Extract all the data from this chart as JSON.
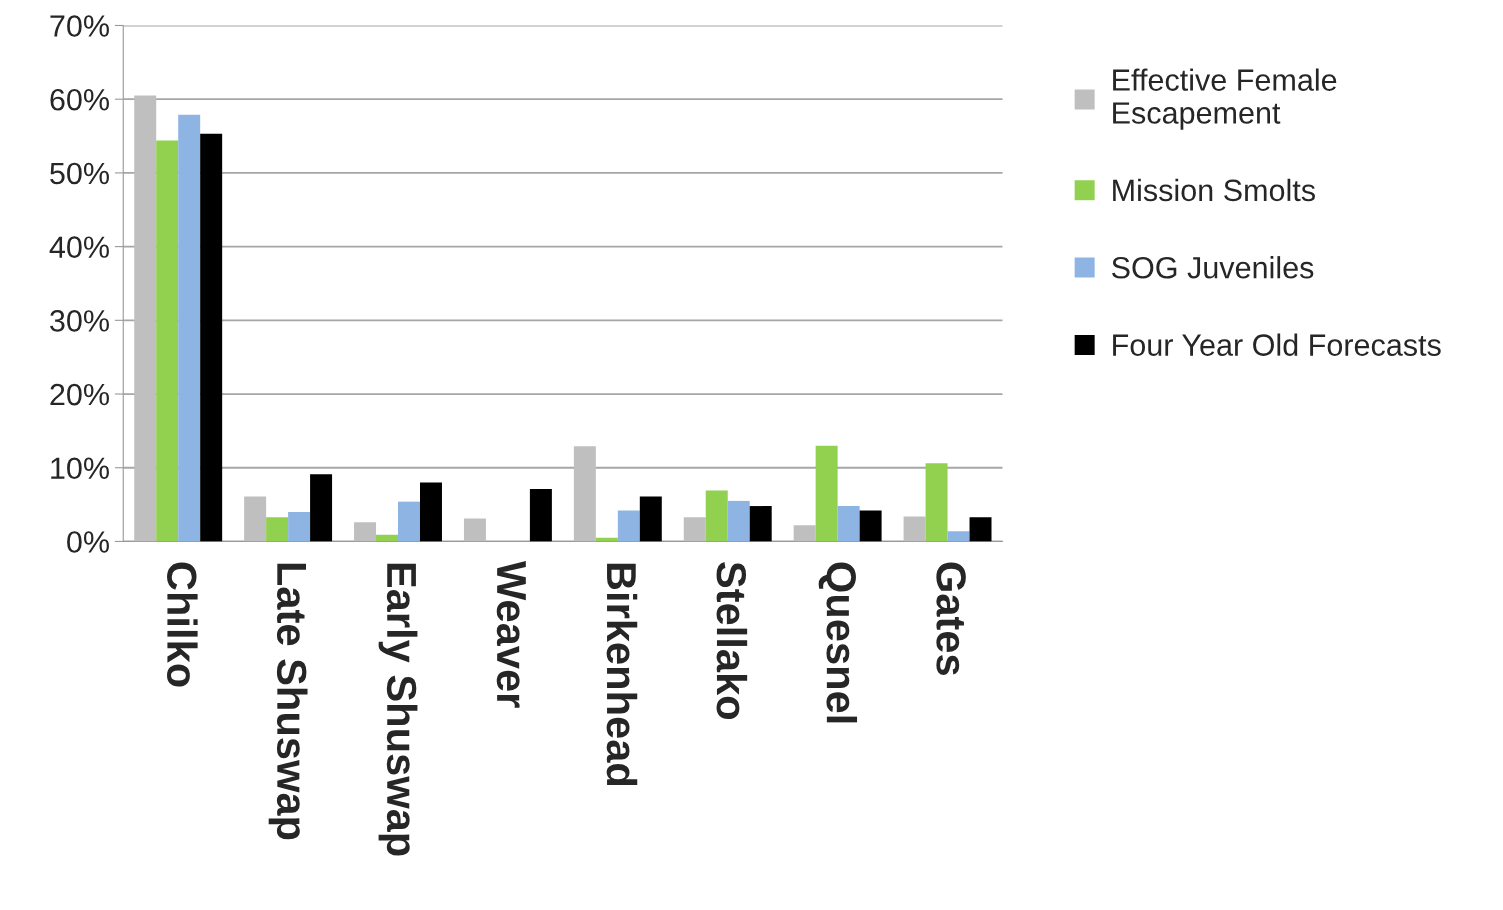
{
  "chart_data": {
    "type": "bar",
    "categories": [
      "Chilko",
      "Late Shuswap",
      "Early Shuswap",
      "Weaver",
      "Birkenhead",
      "Stellako",
      "Quesnel",
      "Gates"
    ],
    "series": [
      {
        "name": "Effective Female\nEscapement",
        "color": "#bfbfbf",
        "values": [
          60.5,
          6.1,
          2.6,
          3.1,
          12.9,
          3.3,
          2.2,
          3.4
        ]
      },
      {
        "name": "Mission Smolts",
        "color": "#92d050",
        "values": [
          54.4,
          3.3,
          0.9,
          0,
          0.5,
          6.9,
          13.0,
          10.6
        ]
      },
      {
        "name": "SOG Juveniles",
        "color": "#8eb4e3",
        "values": [
          57.9,
          4.0,
          5.4,
          0,
          4.2,
          5.5,
          4.8,
          1.4
        ]
      },
      {
        "name": "Four Year Old Forecasts",
        "color": "#000000",
        "values": [
          55.3,
          9.1,
          8.0,
          7.1,
          6.1,
          4.8,
          4.2,
          3.3
        ]
      }
    ],
    "ylim": [
      0,
      70
    ],
    "yticks": [
      {
        "value": 0,
        "label": "0%"
      },
      {
        "value": 10,
        "label": "10%"
      },
      {
        "value": 20,
        "label": "20%"
      },
      {
        "value": 30,
        "label": "30%"
      },
      {
        "value": 40,
        "label": "40%"
      },
      {
        "value": 50,
        "label": "50%"
      },
      {
        "value": 60,
        "label": "60%"
      },
      {
        "value": 70,
        "label": "70%"
      }
    ],
    "grid": "y",
    "legend": "right"
  }
}
